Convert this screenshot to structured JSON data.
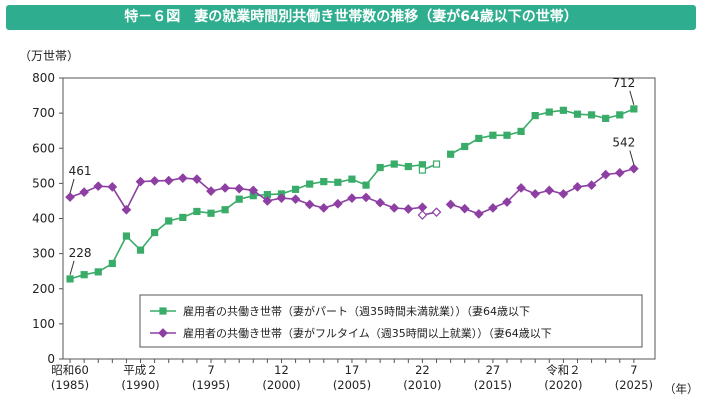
{
  "title": "特－６図　妻の就業時間別共働き世帯数の推移（妻が64歳以下の世帯）",
  "chart_data": {
    "type": "line",
    "ylabel": "（万世帯）",
    "xunit": "（年）",
    "ylim": [
      0,
      800
    ],
    "yticks": [
      0,
      100,
      200,
      300,
      400,
      500,
      600,
      700,
      800
    ],
    "xticks": [
      {
        "year": 1985,
        "line1": "昭和60",
        "line2": "(1985)"
      },
      {
        "year": 1990,
        "line1": "平成２",
        "line2": "(1990)"
      },
      {
        "year": 1995,
        "line1": "7",
        "line2": "(1995)"
      },
      {
        "year": 2000,
        "line1": "12",
        "line2": "(2000)"
      },
      {
        "year": 2005,
        "line1": "17",
        "line2": "(2005)"
      },
      {
        "year": 2010,
        "line1": "22",
        "line2": "(2010)"
      },
      {
        "year": 2015,
        "line1": "27",
        "line2": "(2015)"
      },
      {
        "year": 2020,
        "line1": "令和２",
        "line2": "(2020)"
      },
      {
        "year": 2025,
        "line1": "7",
        "line2": "(2025)"
      }
    ],
    "series": [
      {
        "name": "雇用者の共働き世帯（妻がパート（週35時間未満就業））（妻64歳以下",
        "color": "#3aac6a",
        "marker": "square",
        "segments": [
          {
            "x": [
              1985,
              1986,
              1987,
              1988,
              1989,
              1990,
              1991,
              1992,
              1993,
              1994,
              1995,
              1996,
              1997,
              1998,
              1999,
              2000,
              2001,
              2002,
              2003,
              2004,
              2005,
              2006,
              2007,
              2008,
              2009,
              2010
            ],
            "y": [
              228,
              240,
              248,
              272,
              350,
              310,
              360,
              393,
              403,
              420,
              415,
              425,
              455,
              465,
              468,
              470,
              483,
              498,
              505,
              503,
              512,
              495,
              545,
              555,
              548,
              553
            ]
          },
          {
            "x": [
              2010,
              2011
            ],
            "y": [
              538,
              555
            ],
            "open": true
          },
          {
            "x": [
              2012,
              2013,
              2014,
              2015,
              2016,
              2017,
              2018,
              2019,
              2020,
              2021,
              2022,
              2023,
              2024,
              2025
            ],
            "y": [
              583,
              605,
              628,
              637,
              637,
              648,
              693,
              703,
              708,
              697,
              695,
              685,
              695,
              712
            ]
          }
        ]
      },
      {
        "name": "雇用者の共働き世帯（妻がフルタイム（週35時間以上就業））（妻64歳以下",
        "color": "#8e3fa3",
        "marker": "diamond",
        "segments": [
          {
            "x": [
              1985,
              1986,
              1987,
              1988,
              1989,
              1990,
              1991,
              1992,
              1993,
              1994,
              1995,
              1996,
              1997,
              1998,
              1999,
              2000,
              2001,
              2002,
              2003,
              2004,
              2005,
              2006,
              2007,
              2008,
              2009,
              2010
            ],
            "y": [
              461,
              475,
              492,
              490,
              425,
              505,
              507,
              508,
              515,
              512,
              478,
              487,
              485,
              480,
              450,
              458,
              455,
              440,
              430,
              442,
              458,
              460,
              445,
              430,
              427,
              432
            ]
          },
          {
            "x": [
              2010,
              2011
            ],
            "y": [
              410,
              418
            ],
            "open": true
          },
          {
            "x": [
              2012,
              2013,
              2014,
              2015,
              2016,
              2017,
              2018,
              2019,
              2020,
              2021,
              2022,
              2023,
              2024,
              2025
            ],
            "y": [
              440,
              428,
              413,
              430,
              447,
              487,
              470,
              480,
              470,
              490,
              495,
              525,
              530,
              542
            ]
          }
        ]
      }
    ],
    "annotations": [
      {
        "series": 0,
        "year": 1985,
        "text": "228"
      },
      {
        "series": 1,
        "year": 1985,
        "text": "461"
      },
      {
        "series": 0,
        "year": 2025,
        "text": "712"
      },
      {
        "series": 1,
        "year": 2025,
        "text": "542"
      }
    ]
  }
}
